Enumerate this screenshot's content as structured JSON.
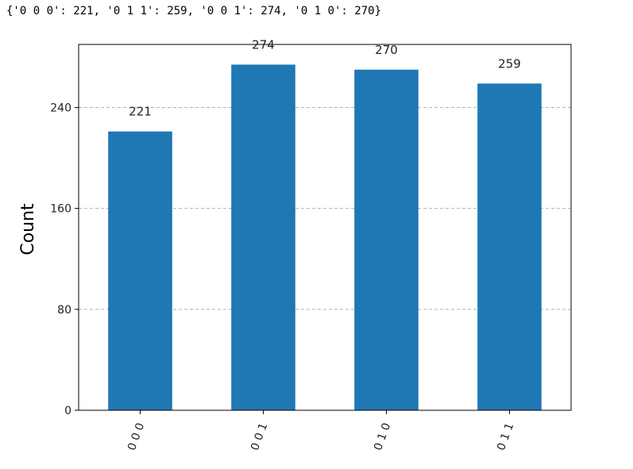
{
  "output_text": "{'0 0 0': 221, '0 1 1': 259, '0 0 1': 274, '0 1 0': 270}",
  "chart_data": {
    "type": "bar",
    "categories": [
      "0 0 0",
      "0 0 1",
      "0 1 0",
      "0 1 1"
    ],
    "values": [
      221,
      274,
      270,
      259
    ],
    "value_labels": [
      "221",
      "274",
      "270",
      "259"
    ],
    "title": "",
    "xlabel": "",
    "ylabel": "Count",
    "ylim": [
      0,
      290
    ],
    "yticks": [
      0,
      80,
      160,
      240
    ],
    "ytick_labels": [
      "0",
      "80",
      "160",
      "240"
    ],
    "x_tick_rotation": -70,
    "grid": "horizontal dashed",
    "bar_color": "#1f77b4",
    "grid_color": "#b0b0b0"
  }
}
